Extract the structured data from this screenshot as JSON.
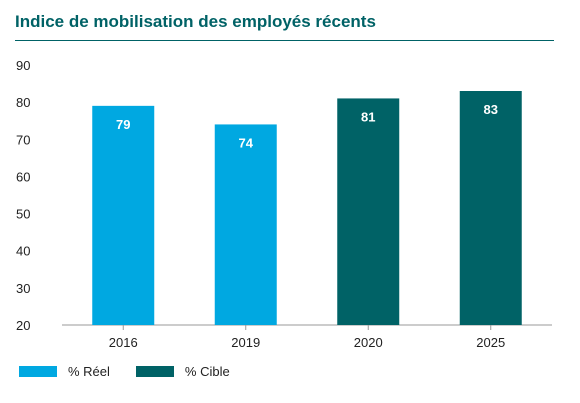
{
  "chart_data": {
    "type": "bar",
    "title": "Indice de mobilisation des employés récents",
    "categories": [
      "2016",
      "2019",
      "2020",
      "2025"
    ],
    "values": [
      79,
      74,
      81,
      83
    ],
    "data_labels": [
      "79",
      "74",
      "81",
      "83"
    ],
    "bar_series": [
      "% Réel",
      "% Réel",
      "% Cible",
      "% Cible"
    ],
    "series": [
      {
        "name": "% Réel",
        "color": "#00a8e1"
      },
      {
        "name": "% Cible",
        "color": "#006266"
      }
    ],
    "ylim": [
      20,
      90
    ],
    "yticks": [
      "20",
      "30",
      "40",
      "50",
      "60",
      "70",
      "80",
      "90"
    ],
    "grid": false,
    "legend_position": "bottom-left",
    "label_color": "#ffffff",
    "axis_color": "#999999"
  }
}
